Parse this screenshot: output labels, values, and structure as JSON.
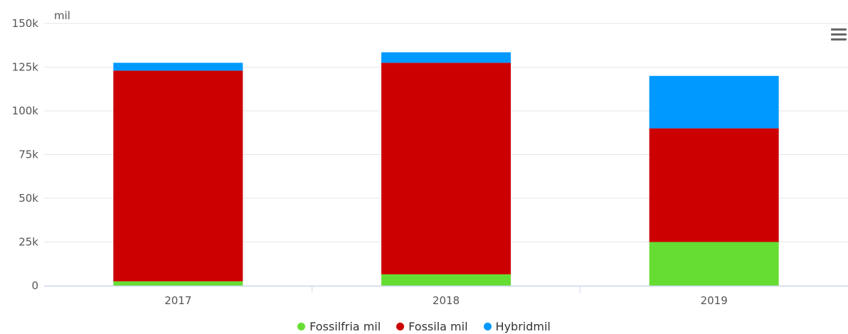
{
  "chart_data": {
    "type": "bar",
    "stacked": true,
    "categories": [
      "2017",
      "2018",
      "2019"
    ],
    "series": [
      {
        "name": "Fossilfria mil",
        "color": "#66dd33",
        "values": [
          2500,
          6500,
          25000
        ]
      },
      {
        "name": "Fossila mil",
        "color": "#cc0000",
        "values": [
          120500,
          121000,
          65000
        ]
      },
      {
        "name": "Hybridmil",
        "color": "#0099ff",
        "values": [
          4500,
          6000,
          30000
        ]
      }
    ],
    "ylabel": "mil",
    "ylim": [
      0,
      150000
    ],
    "yticks": [
      0,
      25000,
      50000,
      75000,
      100000,
      125000,
      150000
    ],
    "ytick_labels": [
      "0",
      "25k",
      "50k",
      "75k",
      "100k",
      "125k",
      "150k"
    ],
    "grid": true,
    "legend_position": "bottom"
  },
  "menu": {
    "icon": "hamburger-menu-icon"
  }
}
